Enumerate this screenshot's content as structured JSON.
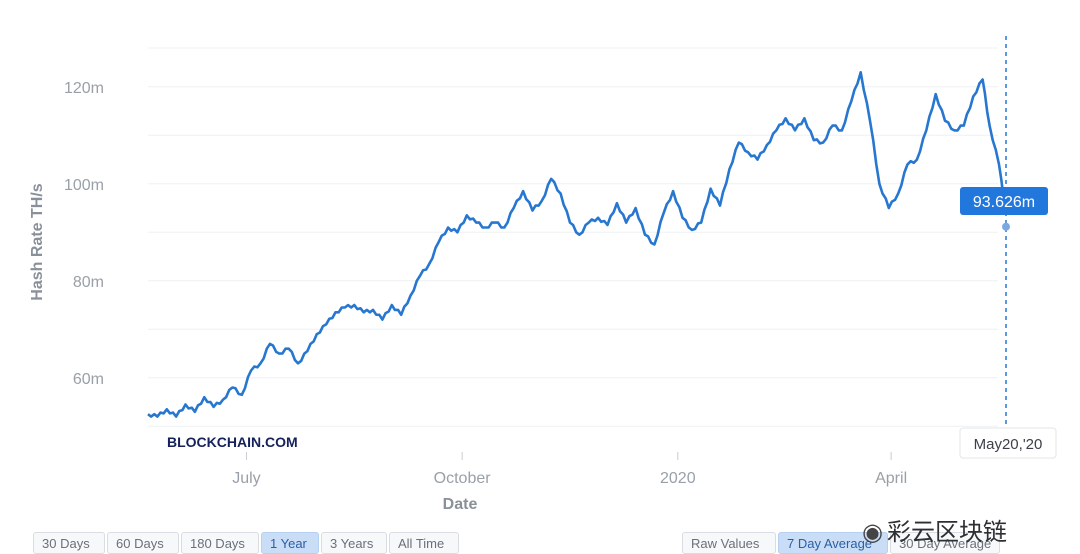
{
  "chart_data": {
    "type": "line",
    "title": "",
    "xlabel": "Date",
    "ylabel": "Hash Rate TH/s",
    "ylim": [
      48,
      128
    ],
    "y_ticks": [
      {
        "value": 60,
        "label": "60m"
      },
      {
        "value": 80,
        "label": "80m"
      },
      {
        "value": 100,
        "label": "100m"
      },
      {
        "value": 120,
        "label": "120m"
      }
    ],
    "x_ticks": [
      {
        "date": "2019-07-01",
        "label": "July"
      },
      {
        "date": "2019-10-01",
        "label": "October"
      },
      {
        "date": "2020-01-01",
        "label": "2020"
      },
      {
        "date": "2020-04-01",
        "label": "April"
      }
    ],
    "grid": true,
    "series": [
      {
        "color": "#2777d0",
        "points": [
          [
            "2019-05-20",
            52.5
          ],
          [
            "2019-05-24",
            52.0
          ],
          [
            "2019-05-28",
            53.5
          ],
          [
            "2019-06-01",
            52.0
          ],
          [
            "2019-06-05",
            54.5
          ],
          [
            "2019-06-09",
            53.0
          ],
          [
            "2019-06-13",
            56.0
          ],
          [
            "2019-06-17",
            54.0
          ],
          [
            "2019-06-21",
            55.5
          ],
          [
            "2019-06-25",
            58.0
          ],
          [
            "2019-06-29",
            56.5
          ],
          [
            "2019-07-03",
            61.5
          ],
          [
            "2019-07-07",
            63.0
          ],
          [
            "2019-07-11",
            67.0
          ],
          [
            "2019-07-15",
            65.0
          ],
          [
            "2019-07-19",
            66.0
          ],
          [
            "2019-07-23",
            63.0
          ],
          [
            "2019-07-27",
            65.5
          ],
          [
            "2019-07-31",
            69.0
          ],
          [
            "2019-08-04",
            71.0
          ],
          [
            "2019-08-08",
            73.5
          ],
          [
            "2019-08-12",
            74.5
          ],
          [
            "2019-08-16",
            75.0
          ],
          [
            "2019-08-20",
            73.5
          ],
          [
            "2019-08-24",
            74.0
          ],
          [
            "2019-08-28",
            72.0
          ],
          [
            "2019-09-01",
            75.0
          ],
          [
            "2019-09-05",
            73.0
          ],
          [
            "2019-09-09",
            77.0
          ],
          [
            "2019-09-13",
            81.0
          ],
          [
            "2019-09-17",
            83.5
          ],
          [
            "2019-09-21",
            88.0
          ],
          [
            "2019-09-25",
            91.0
          ],
          [
            "2019-09-29",
            90.0
          ],
          [
            "2019-10-03",
            93.5
          ],
          [
            "2019-10-07",
            92.0
          ],
          [
            "2019-10-11",
            91.0
          ],
          [
            "2019-10-15",
            92.0
          ],
          [
            "2019-10-19",
            91.0
          ],
          [
            "2019-10-23",
            95.0
          ],
          [
            "2019-10-27",
            98.5
          ],
          [
            "2019-10-31",
            94.5
          ],
          [
            "2019-11-04",
            96.5
          ],
          [
            "2019-11-08",
            101.0
          ],
          [
            "2019-11-12",
            98.0
          ],
          [
            "2019-11-16",
            92.0
          ],
          [
            "2019-11-20",
            89.5
          ],
          [
            "2019-11-24",
            92.0
          ],
          [
            "2019-11-28",
            93.0
          ],
          [
            "2019-12-02",
            91.5
          ],
          [
            "2019-12-06",
            96.0
          ],
          [
            "2019-12-10",
            92.0
          ],
          [
            "2019-12-14",
            95.0
          ],
          [
            "2019-12-18",
            89.5
          ],
          [
            "2019-12-22",
            87.5
          ],
          [
            "2019-12-26",
            94.0
          ],
          [
            "2019-12-30",
            98.5
          ],
          [
            "2020-01-03",
            93.0
          ],
          [
            "2020-01-07",
            90.5
          ],
          [
            "2020-01-11",
            92.0
          ],
          [
            "2020-01-15",
            99.0
          ],
          [
            "2020-01-19",
            95.5
          ],
          [
            "2020-01-23",
            103.0
          ],
          [
            "2020-01-27",
            108.5
          ],
          [
            "2020-01-31",
            106.5
          ],
          [
            "2020-02-04",
            105.0
          ],
          [
            "2020-02-08",
            108.0
          ],
          [
            "2020-02-12",
            111.0
          ],
          [
            "2020-02-16",
            113.5
          ],
          [
            "2020-02-20",
            111.0
          ],
          [
            "2020-02-24",
            113.5
          ],
          [
            "2020-02-28",
            109.0
          ],
          [
            "2020-03-03",
            108.5
          ],
          [
            "2020-03-07",
            112.0
          ],
          [
            "2020-03-11",
            111.0
          ],
          [
            "2020-03-15",
            117.0
          ],
          [
            "2020-03-19",
            123.0
          ],
          [
            "2020-03-23",
            113.0
          ],
          [
            "2020-03-27",
            100.0
          ],
          [
            "2020-03-31",
            95.0
          ],
          [
            "2020-04-04",
            98.0
          ],
          [
            "2020-04-08",
            104.0
          ],
          [
            "2020-04-12",
            105.0
          ],
          [
            "2020-04-16",
            111.0
          ],
          [
            "2020-04-20",
            118.5
          ],
          [
            "2020-04-24",
            113.0
          ],
          [
            "2020-04-28",
            111.0
          ],
          [
            "2020-05-02",
            112.0
          ],
          [
            "2020-05-06",
            118.0
          ],
          [
            "2020-05-10",
            121.5
          ],
          [
            "2020-05-13",
            112.0
          ],
          [
            "2020-05-17",
            104.0
          ],
          [
            "2020-05-20",
            93.626
          ]
        ]
      }
    ],
    "annotations": {
      "crosshair_date": "2020-05-20",
      "current_value": 93.626,
      "value_label": "93.626m",
      "date_label": "May20,'20"
    }
  },
  "brand": {
    "watermark": "BLOCKCHAIN.COM",
    "wechat": "彩云区块链"
  },
  "range_buttons": [
    {
      "label": "30 Days",
      "active": false
    },
    {
      "label": "60 Days",
      "active": false
    },
    {
      "label": "180 Days",
      "active": false
    },
    {
      "label": "1 Year",
      "active": true
    },
    {
      "label": "3 Years",
      "active": false
    },
    {
      "label": "All Time",
      "active": false
    }
  ],
  "avg_buttons": [
    {
      "label": "Raw Values",
      "active": false
    },
    {
      "label": "7 Day Average",
      "active": true
    },
    {
      "label": "30 Day Average",
      "active": false
    }
  ],
  "colors": {
    "line": "#2777d0",
    "tooltip": "#2177dc",
    "brand": "#14215a"
  }
}
